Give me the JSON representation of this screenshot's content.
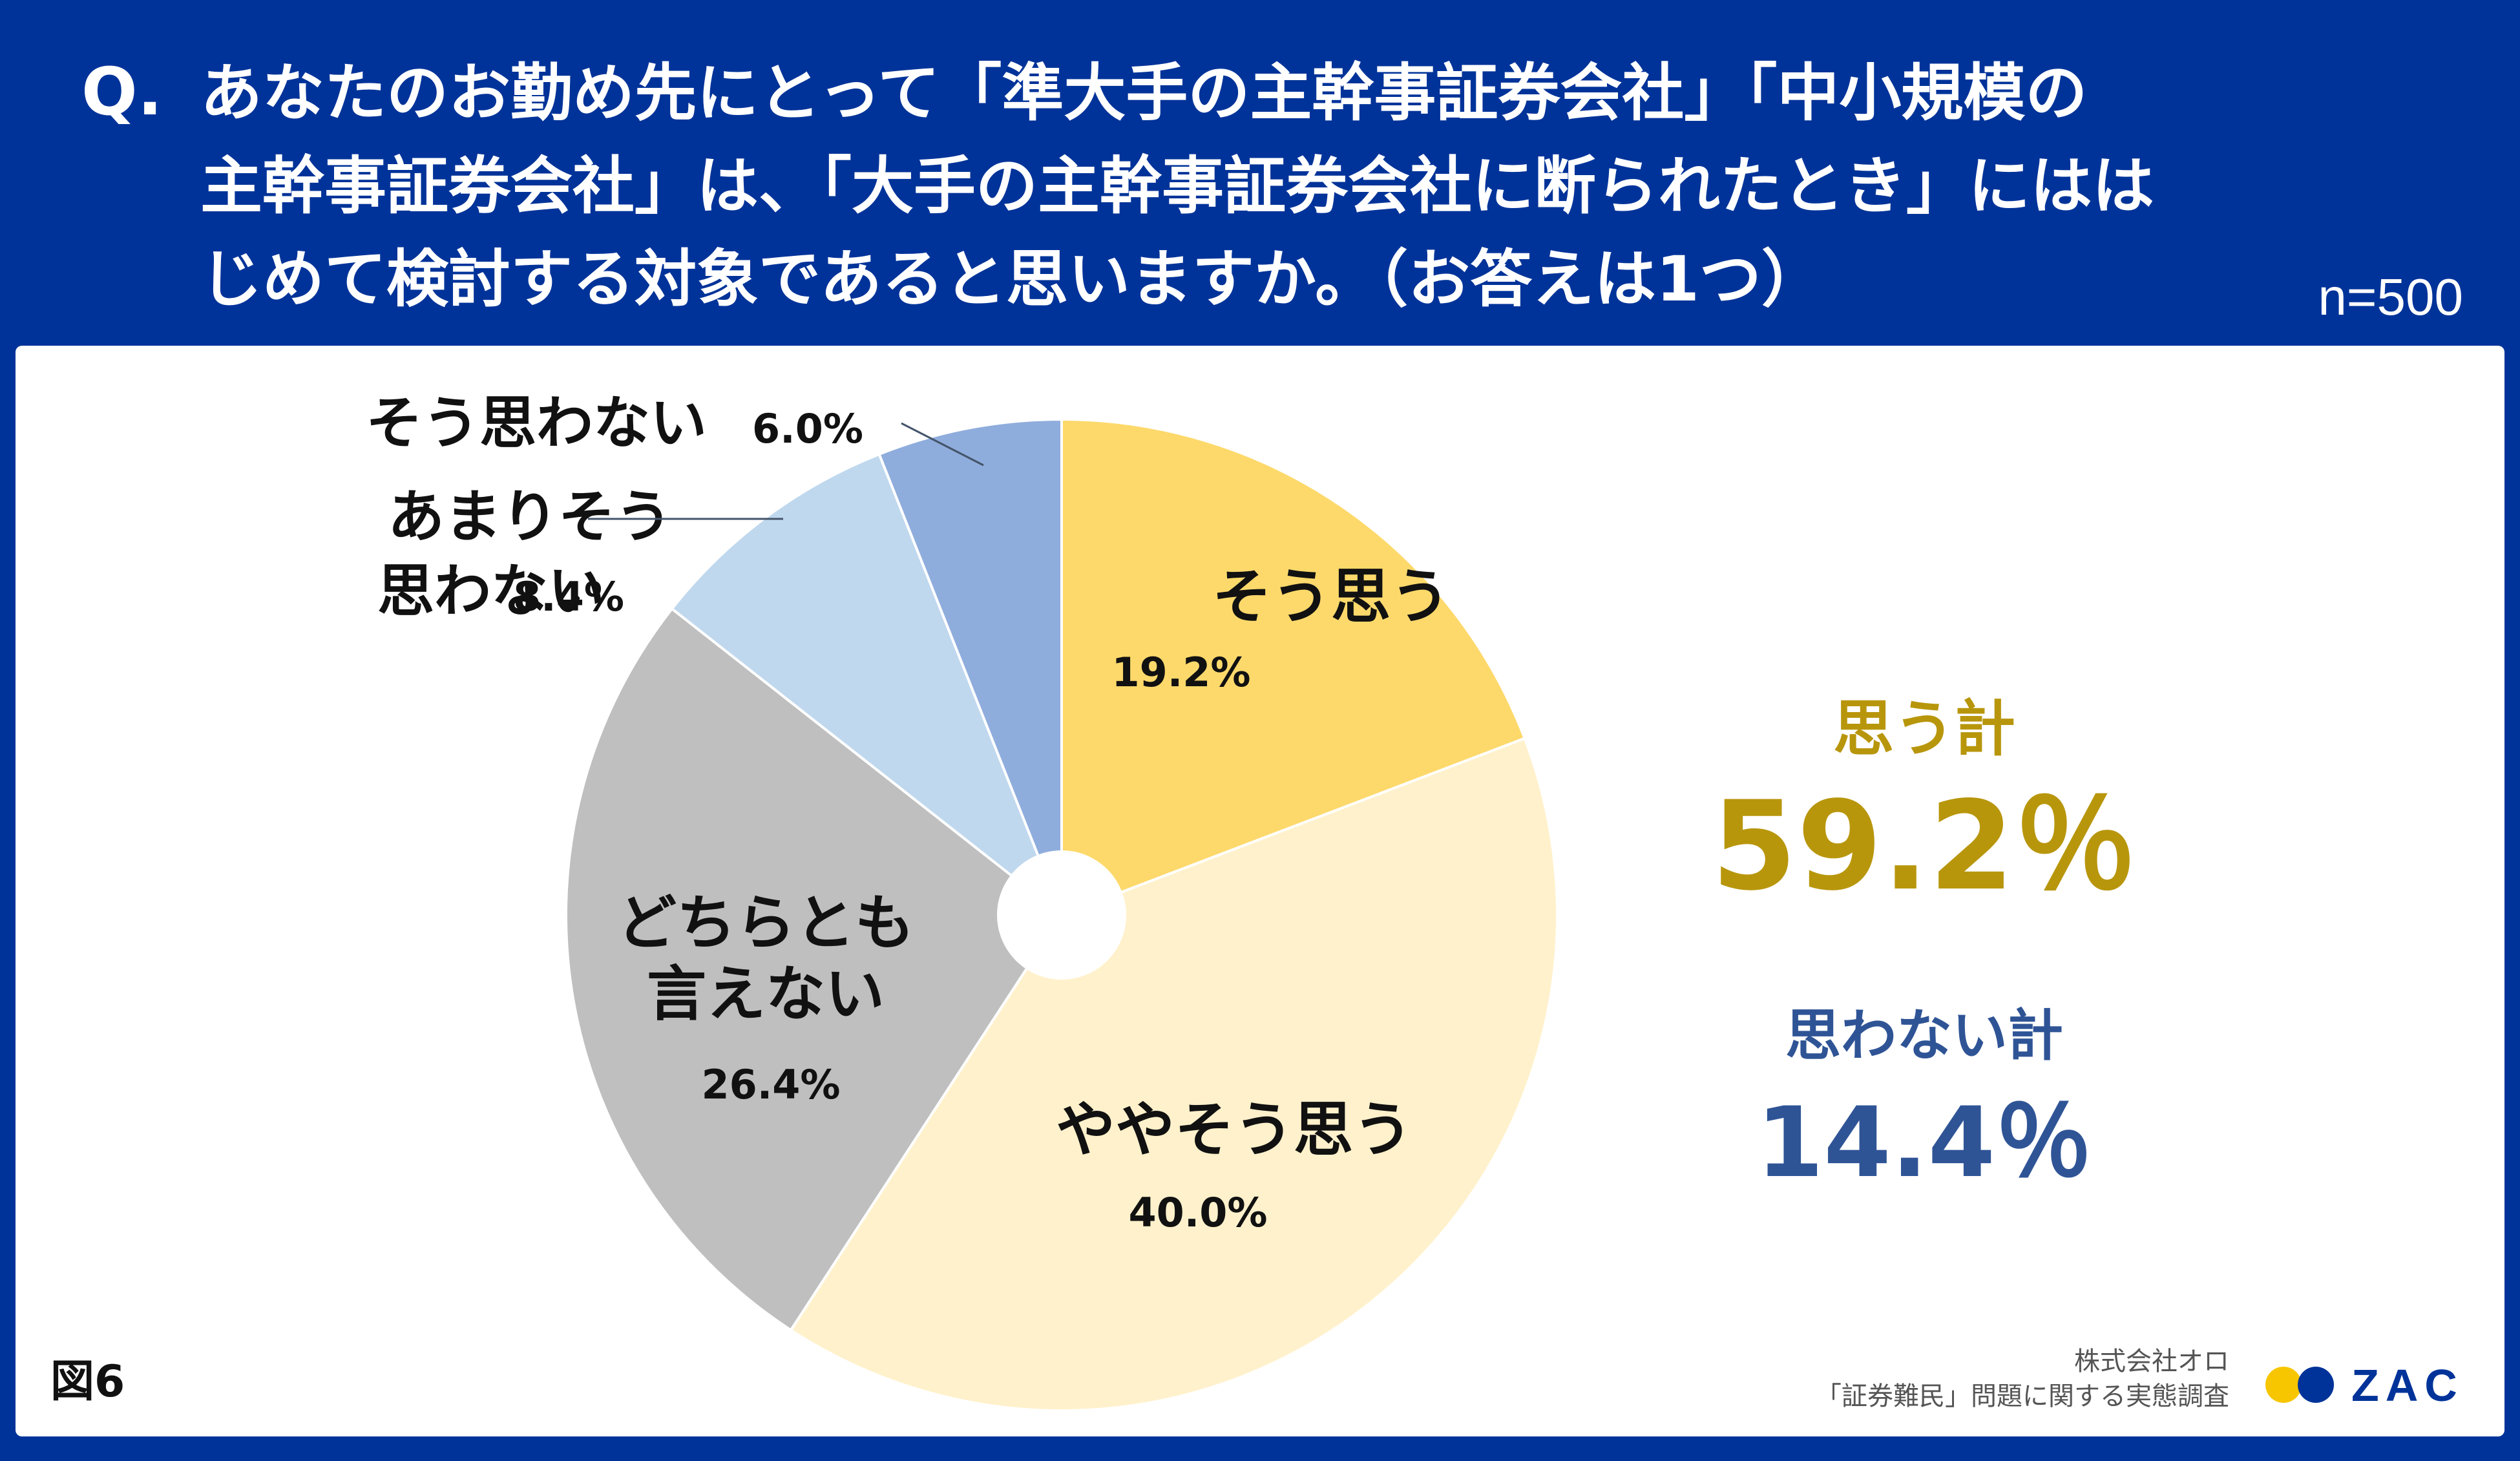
{
  "question": {
    "prefix": "Q.",
    "lines": [
      "あなたのお勤め先にとって「準大手の主幹事証券会社」「中小規模の",
      "主幹事証券会社」は、「大手の主幹事証券会社に断られたとき」にはは",
      "じめて検討する対象であると思いますか。（お答えは1つ）"
    ]
  },
  "sample_size": "n=500",
  "chart_data": {
    "type": "pie",
    "title": "",
    "slices": [
      {
        "label_lines": [
          "そう思う"
        ],
        "value": 19.2,
        "value_label": "19.2%",
        "color": "#FDD96B"
      },
      {
        "label_lines": [
          "ややそう思う"
        ],
        "value": 40.0,
        "value_label": "40.0%",
        "color": "#FFF1CB"
      },
      {
        "label_lines": [
          "どちらとも",
          "言えない"
        ],
        "value": 26.4,
        "value_label": "26.4%",
        "color": "#BFBFBF"
      },
      {
        "label_lines": [
          "あまりそう",
          "思わない"
        ],
        "value": 8.4,
        "value_label": "8.4%",
        "color": "#BFD8EE"
      },
      {
        "label_lines": [
          "そう思わない"
        ],
        "value": 6.0,
        "value_label": "6.0%",
        "color": "#8FADDC"
      }
    ],
    "start": "12 o'clock",
    "direction": "clockwise",
    "legend": "none"
  },
  "summary": {
    "agree": {
      "label": "思う計",
      "value": "59.2％",
      "color": "#B8960C"
    },
    "disagree": {
      "label": "思わない計",
      "value": "14.4％",
      "color": "#2F5496"
    }
  },
  "figure_label": "図6",
  "source": {
    "company": "株式会社オロ",
    "survey": "「証券難民」問題に関する実態調査"
  },
  "logo": {
    "text": "ZAC",
    "colors": {
      "dot_left": "#F7C600",
      "dot_right": "#003399",
      "text": "#003399"
    }
  }
}
